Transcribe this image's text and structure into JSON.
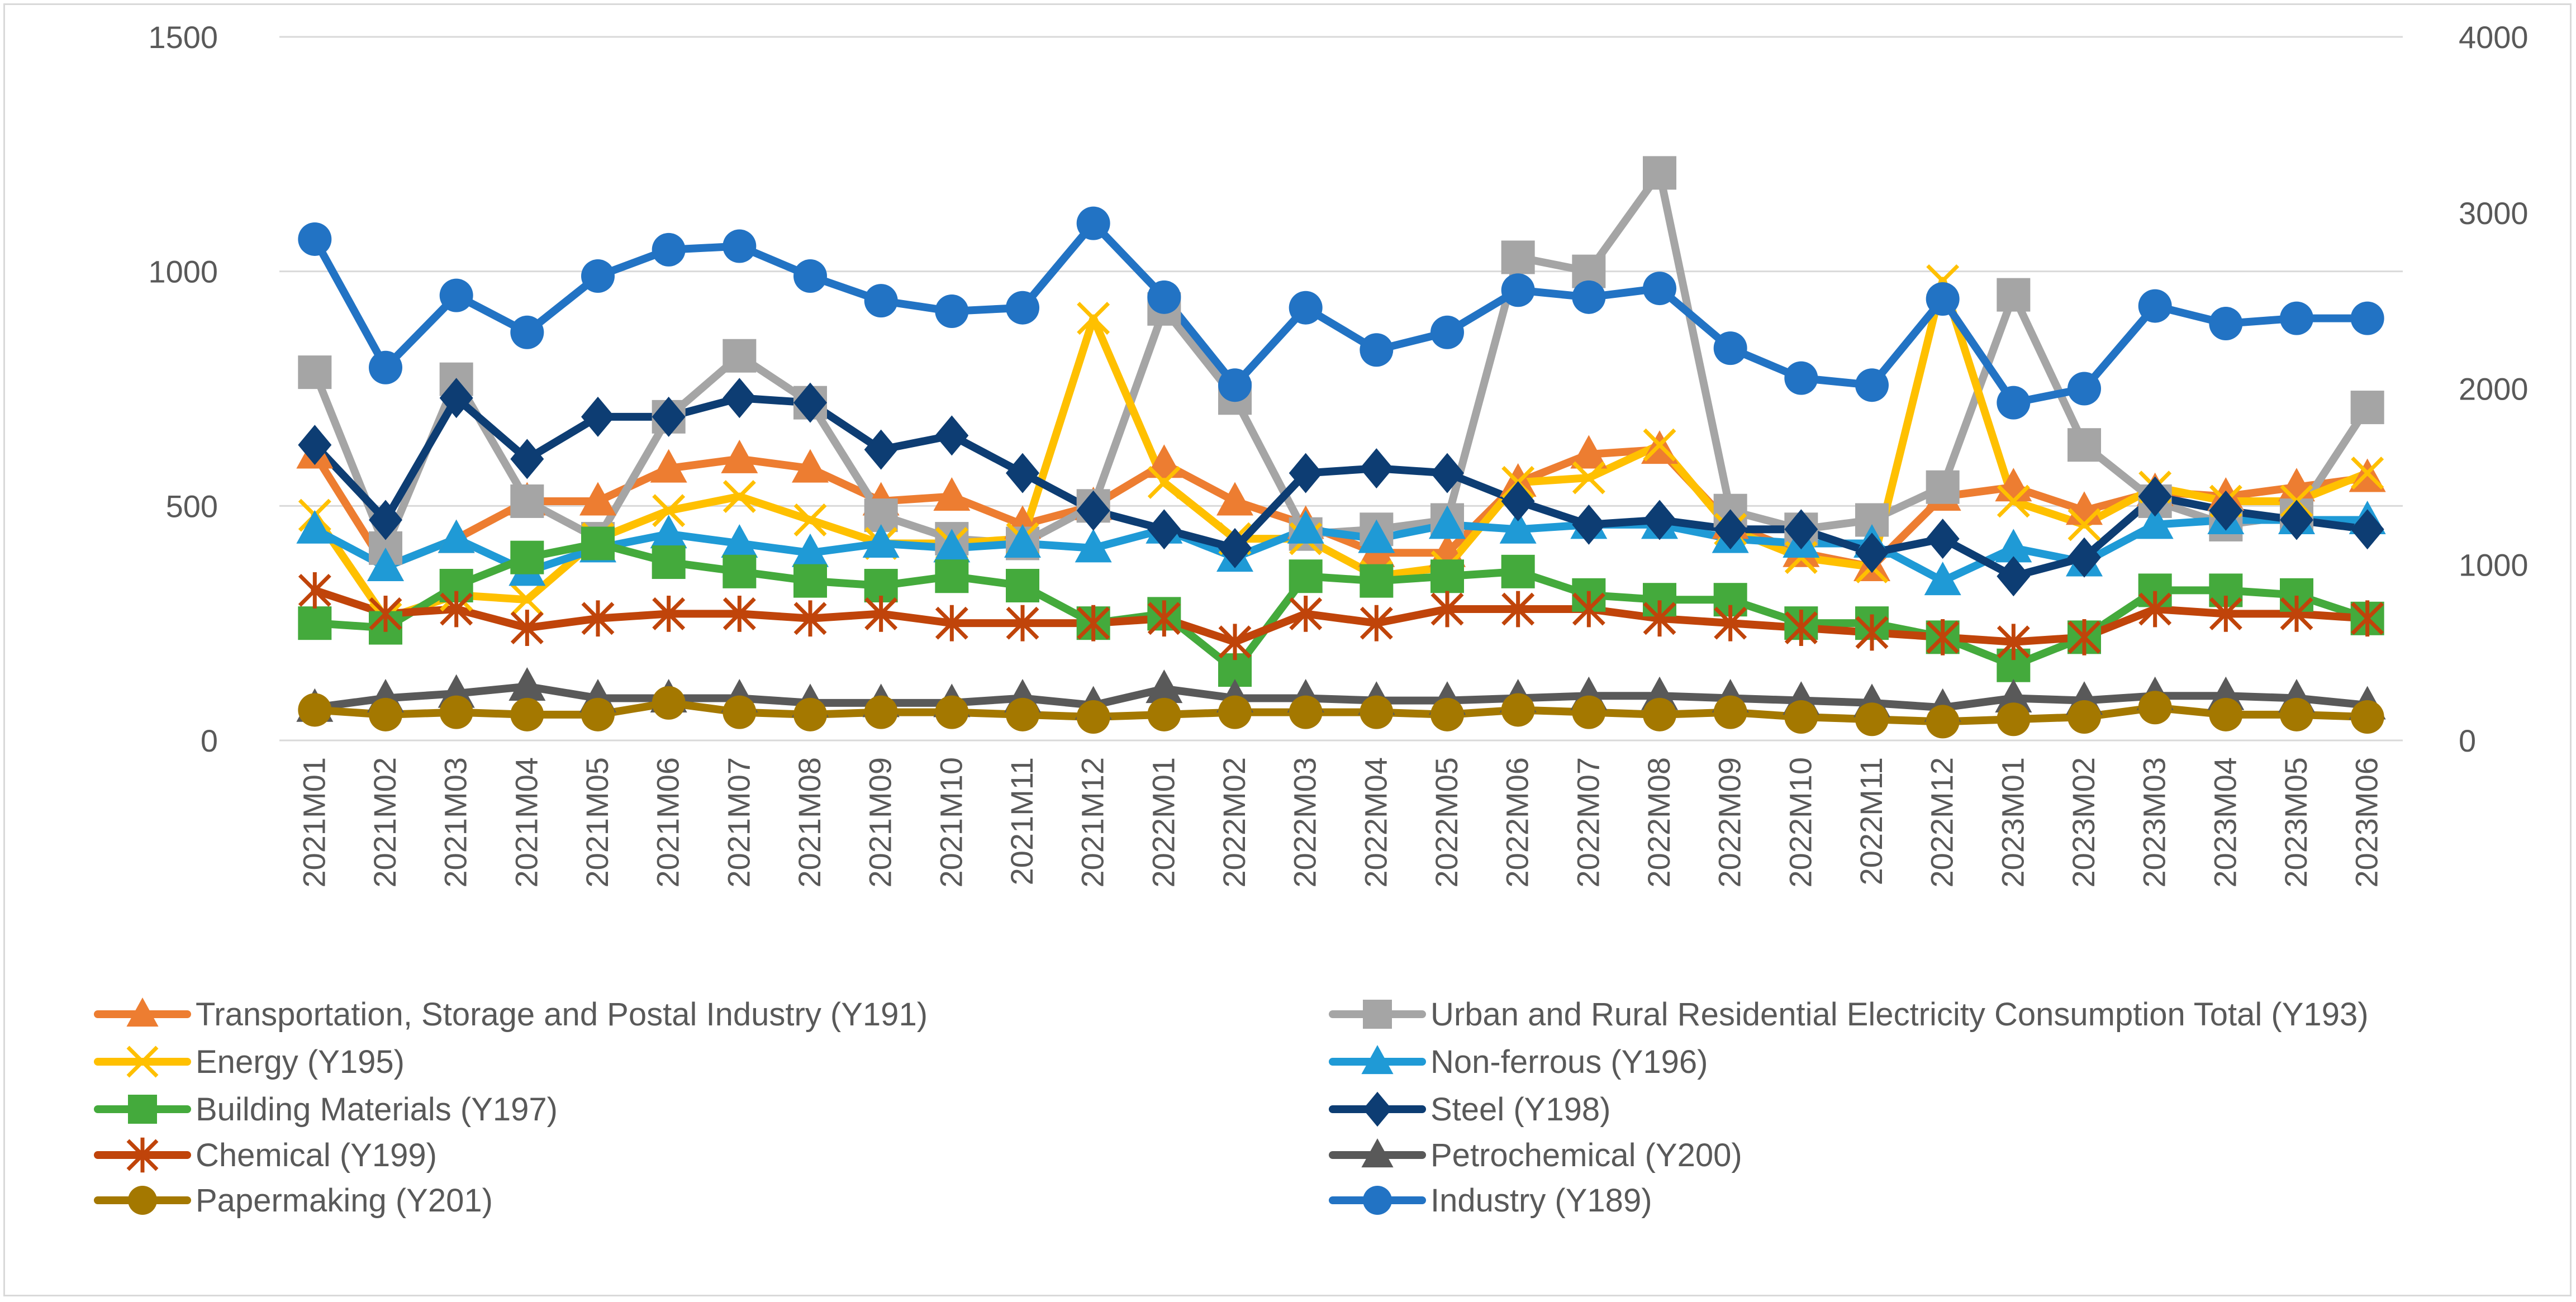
{
  "chart_data": {
    "type": "line",
    "title": "",
    "xlabel": "",
    "ylabel": "",
    "y2label": "",
    "grid": true,
    "legend_position": "bottom",
    "ylim": [
      0,
      1500
    ],
    "y_ticks": [
      0,
      500,
      1000,
      1500
    ],
    "y2lim": [
      0,
      4000
    ],
    "y2_ticks": [
      0,
      1000,
      2000,
      3000,
      4000
    ],
    "categories": [
      "2021M01",
      "2021M02",
      "2021M03",
      "2021M04",
      "2021M05",
      "2021M06",
      "2021M07",
      "2021M08",
      "2021M09",
      "2021M10",
      "2021M11",
      "2021M12",
      "2022M01",
      "2022M02",
      "2022M03",
      "2022M04",
      "2022M05",
      "2022M06",
      "2022M07",
      "2022M08",
      "2022M09",
      "2022M10",
      "2022M11",
      "2022M12",
      "2023M01",
      "2023M02",
      "2023M03",
      "2023M04",
      "2023M05",
      "2023M06"
    ],
    "series": [
      {
        "name": "Transportation, Storage and Postal Industry (Y191)",
        "color": "#ED7D31",
        "marker": "triangle",
        "axis": "left",
        "values": [
          610,
          370,
          430,
          510,
          510,
          580,
          600,
          580,
          510,
          520,
          460,
          500,
          590,
          510,
          460,
          400,
          400,
          550,
          610,
          620,
          460,
          400,
          370,
          520,
          540,
          490,
          530,
          520,
          540,
          560
        ]
      },
      {
        "name": "Urban and Rural Residential Electricity Consumption Total (Y193)",
        "color": "#A5A5A5",
        "marker": "square",
        "axis": "left",
        "values": [
          785,
          410,
          770,
          510,
          430,
          690,
          820,
          720,
          480,
          430,
          420,
          500,
          920,
          730,
          440,
          450,
          470,
          1030,
          1000,
          1210,
          490,
          450,
          470,
          540,
          950,
          630,
          510,
          460,
          480,
          710
        ]
      },
      {
        "name": "Energy (Y195)",
        "color": "#FFC000",
        "marker": "x",
        "axis": "left",
        "values": [
          480,
          260,
          310,
          300,
          430,
          490,
          520,
          470,
          420,
          420,
          430,
          900,
          550,
          430,
          430,
          350,
          370,
          550,
          560,
          630,
          450,
          390,
          370,
          980,
          510,
          460,
          540,
          510,
          510,
          570
        ]
      },
      {
        "name": "Non-ferrous (Y196)",
        "color": "#1F9AD6",
        "marker": "triangle",
        "axis": "left",
        "values": [
          450,
          370,
          430,
          360,
          410,
          440,
          420,
          400,
          420,
          410,
          420,
          410,
          450,
          390,
          450,
          430,
          460,
          450,
          460,
          460,
          430,
          420,
          420,
          340,
          410,
          380,
          460,
          470,
          470,
          470
        ]
      },
      {
        "name": "Building Materials (Y197)",
        "color": "#44AA3C",
        "marker": "square",
        "axis": "left",
        "values": [
          250,
          240,
          330,
          390,
          420,
          380,
          360,
          340,
          330,
          350,
          330,
          250,
          270,
          150,
          350,
          340,
          350,
          360,
          310,
          300,
          300,
          250,
          250,
          220,
          160,
          220,
          320,
          320,
          310,
          260
        ]
      },
      {
        "name": "Steel (Y198)",
        "color": "#0D3D73",
        "marker": "diamond",
        "axis": "left",
        "values": [
          630,
          470,
          730,
          600,
          690,
          690,
          730,
          720,
          620,
          650,
          570,
          490,
          450,
          410,
          570,
          580,
          570,
          510,
          460,
          470,
          450,
          450,
          400,
          430,
          350,
          390,
          520,
          490,
          470,
          450
        ]
      },
      {
        "name": "Chemical (Y199)",
        "color": "#C0440A",
        "marker": "star",
        "axis": "left",
        "values": [
          320,
          270,
          280,
          240,
          260,
          270,
          270,
          260,
          270,
          250,
          250,
          250,
          260,
          210,
          270,
          250,
          280,
          280,
          280,
          260,
          250,
          240,
          230,
          220,
          210,
          220,
          280,
          270,
          270,
          260
        ]
      },
      {
        "name": "Petrochemical (Y200)",
        "color": "#595959",
        "marker": "triangle",
        "axis": "left",
        "values": [
          70,
          90,
          100,
          115,
          90,
          90,
          90,
          80,
          80,
          80,
          90,
          75,
          110,
          90,
          90,
          85,
          85,
          90,
          95,
          95,
          90,
          85,
          80,
          70,
          90,
          85,
          95,
          95,
          90,
          75
        ]
      },
      {
        "name": "Papermaking (Y201)",
        "color": "#A47800",
        "marker": "circle",
        "axis": "left",
        "values": [
          65,
          55,
          60,
          55,
          55,
          80,
          60,
          55,
          60,
          60,
          55,
          50,
          55,
          60,
          60,
          60,
          55,
          65,
          60,
          55,
          60,
          50,
          45,
          40,
          45,
          50,
          70,
          55,
          55,
          50
        ]
      },
      {
        "name": "Industry (Y189)",
        "color": "#2273C4",
        "marker": "circle",
        "axis": "right",
        "values": [
          2850,
          2120,
          2530,
          2320,
          2640,
          2790,
          2810,
          2640,
          2500,
          2440,
          2460,
          2940,
          2520,
          2020,
          2460,
          2220,
          2320,
          2560,
          2520,
          2570,
          2230,
          2060,
          2020,
          2510,
          1920,
          2000,
          2470,
          2370,
          2400,
          2400
        ]
      }
    ]
  }
}
